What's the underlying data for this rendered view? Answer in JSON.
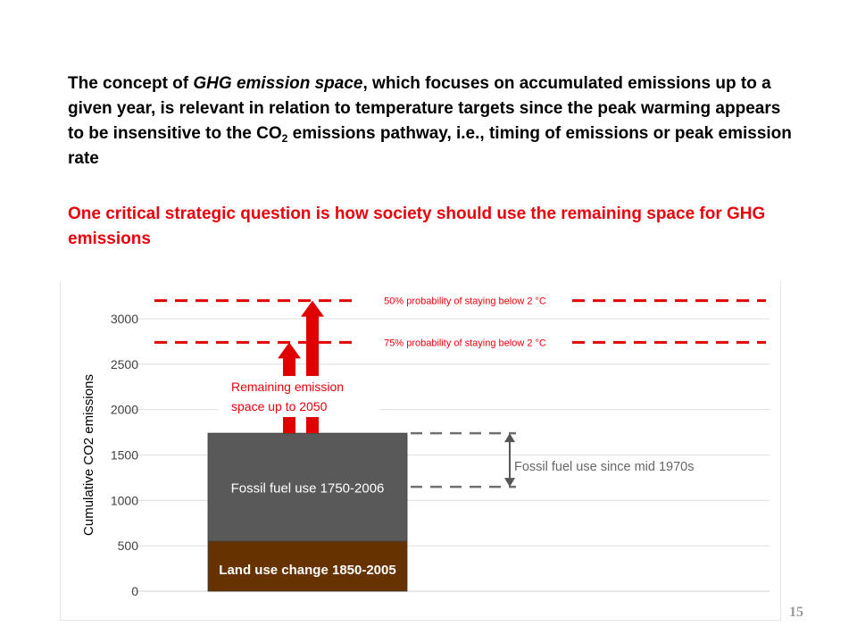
{
  "slide": {
    "heading": {
      "part1": "The concept of ",
      "italic": "GHG emission space",
      "part2": ", which focuses on accumulated emissions up to a given year, is relevant in relation to temperature targets since the peak warming appears to be insensitive to the CO",
      "subscript": "2",
      "part3": " emissions pathway, i.e., timing of emissions or peak emission rate"
    },
    "question": "One critical strategic question is how society should use the remaining space for GHG emissions",
    "page_number": "15"
  },
  "colors": {
    "fossil": "#595959",
    "land_use": "#663300",
    "red": "#e00000",
    "red_text": "#e8000b",
    "note_gray": "#666666",
    "grid": "#d9d9d9"
  },
  "chart_data": {
    "type": "bar",
    "ylabel": "Cumulative CO2 emissions",
    "xlabel": "",
    "title": "",
    "ylim": [
      0,
      3000
    ],
    "yticks": [
      0,
      500,
      1000,
      1500,
      2000,
      2500,
      3000
    ],
    "grid": true,
    "stacked_segments": [
      {
        "name": "Land use change 1850-2005",
        "value": 550
      },
      {
        "name": "Fossil fuel use 1750-2006",
        "value": 1190
      }
    ],
    "thresholds": [
      {
        "label": "50% probability of staying below  2 °C",
        "value": 3200
      },
      {
        "label": "75% probability of staying below  2 °C",
        "value": 2740
      }
    ],
    "arrows": [
      {
        "from": 1740,
        "to": 2740
      },
      {
        "from": 1740,
        "to": 3200
      }
    ],
    "annotations": {
      "remaining": [
        "Remaining emission",
        "space up to 2050"
      ],
      "fossil_since": "Fossil fuel use since mid 1970s",
      "fossil_since_range": [
        1150,
        1740
      ]
    }
  }
}
